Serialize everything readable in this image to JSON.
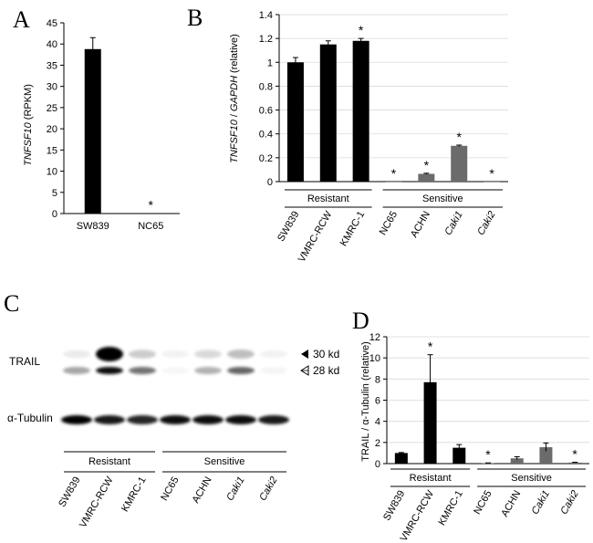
{
  "panels": {
    "A": "A",
    "B": "B",
    "C": "C",
    "D": "D"
  },
  "colors": {
    "resistant_bar": "#000000",
    "sensitive_bar": "#6b6b6b",
    "axis": "#000000",
    "grid": "#d9d9d9"
  },
  "chart_data": [
    {
      "id": "A",
      "type": "bar",
      "title": "",
      "ylabel": "TNFSF10 (RPKM)",
      "ylabel_gene": "TNFSF10",
      "ylabel_unit": "(RPKM)",
      "categories": [
        "SW839",
        "NC65"
      ],
      "values": [
        38.8,
        0.1
      ],
      "errors": [
        2.7,
        0
      ],
      "significant": [
        false,
        true
      ],
      "ylim": [
        0,
        45
      ],
      "yticks": [
        "0",
        "5",
        "10",
        "15",
        "20",
        "25",
        "30",
        "35",
        "40",
        "45"
      ],
      "grid": false
    },
    {
      "id": "B",
      "type": "bar",
      "ylabel": "TNFSF10 / GAPDH (relative)",
      "ylabel_gene": "TNFSF10",
      "ylabel_sep": "/",
      "ylabel_ref": "GAPDH",
      "ylabel_unit": "(relative)",
      "categories": [
        "SW839",
        "VMRC-RCW",
        "KMRC-1",
        "NC65",
        "ACHN",
        "Caki1",
        "Caki2"
      ],
      "values": [
        1.0,
        1.15,
        1.18,
        0.0,
        0.065,
        0.3,
        0.0
      ],
      "errors": [
        0.04,
        0.03,
        0.02,
        0,
        0.005,
        0.006,
        0
      ],
      "significant": [
        false,
        false,
        true,
        true,
        true,
        true,
        true
      ],
      "groups": [
        "Resistant",
        "Sensitive"
      ],
      "ylim": [
        0,
        1.4
      ],
      "yticks": [
        "0",
        "0.2",
        "0.4",
        "0.6",
        "0.8",
        "1",
        "1.2",
        "1.4"
      ],
      "grid": true
    },
    {
      "id": "D",
      "type": "bar",
      "ylabel": "TRAIL / α-Tubulin (relative)",
      "categories": [
        "SW839",
        "VMRC-RCW",
        "KMRC-1",
        "NC65",
        "ACHN",
        "Caki1",
        "Caki2"
      ],
      "values": [
        1.0,
        7.7,
        1.5,
        0.05,
        0.5,
        1.55,
        0.1
      ],
      "errors": [
        0.05,
        2.6,
        0.3,
        0.02,
        0.15,
        0.4,
        0.03
      ],
      "significant": [
        false,
        true,
        false,
        true,
        false,
        false,
        true
      ],
      "groups": [
        "Resistant",
        "Sensitive"
      ],
      "ylim": [
        0,
        12
      ],
      "yticks": [
        "0",
        "2",
        "4",
        "6",
        "8",
        "10",
        "12"
      ],
      "grid": true
    }
  ],
  "blot": {
    "trail_label": "TRAIL",
    "tubulin_label": "α-Tubulin",
    "marker_30": "30 kd",
    "marker_28": "28 kd",
    "groups": [
      "Resistant",
      "Sensitive"
    ],
    "lanes": [
      "SW839",
      "VMRC-RCW",
      "KMRC-1",
      "NC65",
      "ACHN",
      "Caki1",
      "Caki2"
    ],
    "trail_upper_intensity": [
      0.08,
      1.0,
      0.2,
      0.05,
      0.15,
      0.25,
      0.05
    ],
    "trail_lower_intensity": [
      0.35,
      0.95,
      0.55,
      0.03,
      0.3,
      0.6,
      0.04
    ],
    "tubulin_intensity": [
      1.0,
      0.9,
      0.85,
      0.95,
      0.95,
      0.95,
      0.9
    ]
  },
  "significance_mark": "*"
}
